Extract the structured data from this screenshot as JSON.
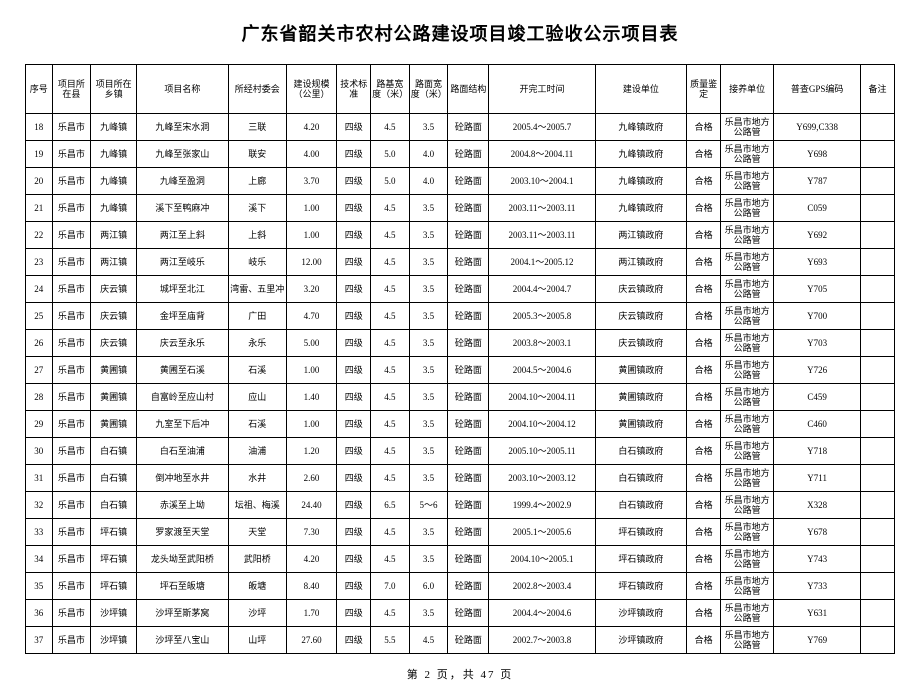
{
  "title": "广东省韶关市农村公路建设项目竣工验收公示项目表",
  "footer": "第 2 页，共 47 页",
  "columns": [
    "序号",
    "项目所在县",
    "项目所在乡镇",
    "项目名称",
    "所经村委会",
    "建设规模（公里）",
    "技术标准",
    "路基宽度（米）",
    "路面宽度（米）",
    "路面结构",
    "开完工时间",
    "建设单位",
    "质量鉴定",
    "接养单位",
    "普查GPS编码",
    "备注"
  ],
  "rows": [
    [
      "18",
      "乐昌市",
      "九峰镇",
      "九峰至宋水洞",
      "三联",
      "4.20",
      "四级",
      "4.5",
      "3.5",
      "砼路面",
      "2005.4～2005.7",
      "九峰镇政府",
      "合格",
      "乐昌市地方公路管",
      "Y699,C338",
      ""
    ],
    [
      "19",
      "乐昌市",
      "九峰镇",
      "九峰至张家山",
      "联安",
      "4.00",
      "四级",
      "5.0",
      "4.0",
      "砼路面",
      "2004.8～2004.11",
      "九峰镇政府",
      "合格",
      "乐昌市地方公路管",
      "Y698",
      ""
    ],
    [
      "20",
      "乐昌市",
      "九峰镇",
      "九峰至盈洞",
      "上廊",
      "3.70",
      "四级",
      "5.0",
      "4.0",
      "砼路面",
      "2003.10～2004.1",
      "九峰镇政府",
      "合格",
      "乐昌市地方公路管",
      "Y787",
      ""
    ],
    [
      "21",
      "乐昌市",
      "九峰镇",
      "溪下至鸭麻冲",
      "溪下",
      "1.00",
      "四级",
      "4.5",
      "3.5",
      "砼路面",
      "2003.11～2003.11",
      "九峰镇政府",
      "合格",
      "乐昌市地方公路管",
      "C059",
      ""
    ],
    [
      "22",
      "乐昌市",
      "两江镇",
      "两江至上斜",
      "上斜",
      "1.00",
      "四级",
      "4.5",
      "3.5",
      "砼路面",
      "2003.11～2003.11",
      "两江镇政府",
      "合格",
      "乐昌市地方公路管",
      "Y692",
      ""
    ],
    [
      "23",
      "乐昌市",
      "两江镇",
      "两江至岐乐",
      "岐乐",
      "12.00",
      "四级",
      "4.5",
      "3.5",
      "砼路面",
      "2004.1～2005.12",
      "两江镇政府",
      "合格",
      "乐昌市地方公路管",
      "Y693",
      ""
    ],
    [
      "24",
      "乐昌市",
      "庆云镇",
      "城坪至北江",
      "湾雷、五里冲",
      "3.20",
      "四级",
      "4.5",
      "3.5",
      "砼路面",
      "2004.4～2004.7",
      "庆云镇政府",
      "合格",
      "乐昌市地方公路管",
      "Y705",
      ""
    ],
    [
      "25",
      "乐昌市",
      "庆云镇",
      "金坪至庙背",
      "广田",
      "4.70",
      "四级",
      "4.5",
      "3.5",
      "砼路面",
      "2005.3～2005.8",
      "庆云镇政府",
      "合格",
      "乐昌市地方公路管",
      "Y700",
      ""
    ],
    [
      "26",
      "乐昌市",
      "庆云镇",
      "庆云至永乐",
      "永乐",
      "5.00",
      "四级",
      "4.5",
      "3.5",
      "砼路面",
      "2003.8～2003.1",
      "庆云镇政府",
      "合格",
      "乐昌市地方公路管",
      "Y703",
      ""
    ],
    [
      "27",
      "乐昌市",
      "黄圃镇",
      "黄圃至石溪",
      "石溪",
      "1.00",
      "四级",
      "4.5",
      "3.5",
      "砼路面",
      "2004.5～2004.6",
      "黄圃镇政府",
      "合格",
      "乐昌市地方公路管",
      "Y726",
      ""
    ],
    [
      "28",
      "乐昌市",
      "黄圃镇",
      "自富岭至应山村",
      "应山",
      "1.40",
      "四级",
      "4.5",
      "3.5",
      "砼路面",
      "2004.10～2004.11",
      "黄圃镇政府",
      "合格",
      "乐昌市地方公路管",
      "C459",
      ""
    ],
    [
      "29",
      "乐昌市",
      "黄圃镇",
      "九室至下后冲",
      "石溪",
      "1.00",
      "四级",
      "4.5",
      "3.5",
      "砼路面",
      "2004.10～2004.12",
      "黄圃镇政府",
      "合格",
      "乐昌市地方公路管",
      "C460",
      ""
    ],
    [
      "30",
      "乐昌市",
      "白石镇",
      "白石至油浦",
      "油浦",
      "1.20",
      "四级",
      "4.5",
      "3.5",
      "砼路面",
      "2005.10～2005.11",
      "白石镇政府",
      "合格",
      "乐昌市地方公路管",
      "Y718",
      ""
    ],
    [
      "31",
      "乐昌市",
      "白石镇",
      "倒冲地至水井",
      "水井",
      "2.60",
      "四级",
      "4.5",
      "3.5",
      "砼路面",
      "2003.10～2003.12",
      "白石镇政府",
      "合格",
      "乐昌市地方公路管",
      "Y711",
      ""
    ],
    [
      "32",
      "乐昌市",
      "白石镇",
      "赤溪至上坳",
      "坛祖、梅溪",
      "24.40",
      "四级",
      "6.5",
      "5～6",
      "砼路面",
      "1999.4～2002.9",
      "白石镇政府",
      "合格",
      "乐昌市地方公路管",
      "X328",
      ""
    ],
    [
      "33",
      "乐昌市",
      "坪石镇",
      "罗家渡至天堂",
      "天堂",
      "7.30",
      "四级",
      "4.5",
      "3.5",
      "砼路面",
      "2005.1～2005.6",
      "坪石镇政府",
      "合格",
      "乐昌市地方公路管",
      "Y678",
      ""
    ],
    [
      "34",
      "乐昌市",
      "坪石镇",
      "龙头坳至武阳桥",
      "武阳桥",
      "4.20",
      "四级",
      "4.5",
      "3.5",
      "砼路面",
      "2004.10～2005.1",
      "坪石镇政府",
      "合格",
      "乐昌市地方公路管",
      "Y743",
      ""
    ],
    [
      "35",
      "乐昌市",
      "坪石镇",
      "坪石至皈塘",
      "皈塘",
      "8.40",
      "四级",
      "7.0",
      "6.0",
      "砼路面",
      "2002.8～2003.4",
      "坪石镇政府",
      "合格",
      "乐昌市地方公路管",
      "Y733",
      ""
    ],
    [
      "36",
      "乐昌市",
      "沙坪镇",
      "沙坪至斯茅窝",
      "沙坪",
      "1.70",
      "四级",
      "4.5",
      "3.5",
      "砼路面",
      "2004.4～2004.6",
      "沙坪镇政府",
      "合格",
      "乐昌市地方公路管",
      "Y631",
      ""
    ],
    [
      "37",
      "乐昌市",
      "沙坪镇",
      "沙坪至八宝山",
      "山坪",
      "27.60",
      "四级",
      "5.5",
      "4.5",
      "砼路面",
      "2002.7～2003.8",
      "沙坪镇政府",
      "合格",
      "乐昌市地方公路管",
      "Y769",
      ""
    ]
  ]
}
